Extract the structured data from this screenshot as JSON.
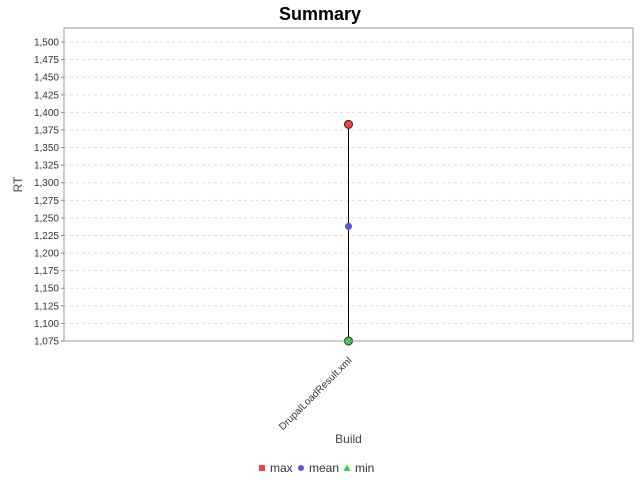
{
  "chart_data": {
    "type": "scatter",
    "title": "Summary",
    "xlabel": "Build",
    "ylabel": "RT",
    "categories": [
      "DrupalLoadResult.xml"
    ],
    "ylim": [
      1075,
      1520
    ],
    "yticks": [
      1075,
      1100,
      1125,
      1150,
      1175,
      1200,
      1225,
      1250,
      1275,
      1300,
      1325,
      1350,
      1375,
      1400,
      1425,
      1450,
      1475,
      1500
    ],
    "grid": true,
    "legend": "bottom",
    "series": [
      {
        "name": "max",
        "values": [
          1383
        ],
        "color": "#ee4444",
        "marker": "circle"
      },
      {
        "name": "mean",
        "values": [
          1238
        ],
        "color": "#5555dd",
        "marker": "circle"
      },
      {
        "name": "min",
        "values": [
          1075
        ],
        "color": "#44cc44",
        "marker": "circle"
      }
    ],
    "legend_items": [
      {
        "label": "max",
        "color": "#ee4444",
        "shape": "square"
      },
      {
        "label": "mean",
        "color": "#5555dd",
        "shape": "circle"
      },
      {
        "label": "min",
        "color": "#44cc44",
        "shape": "triangle"
      }
    ],
    "plot_background": "#ffffff",
    "grid_color": "#dddddd"
  }
}
